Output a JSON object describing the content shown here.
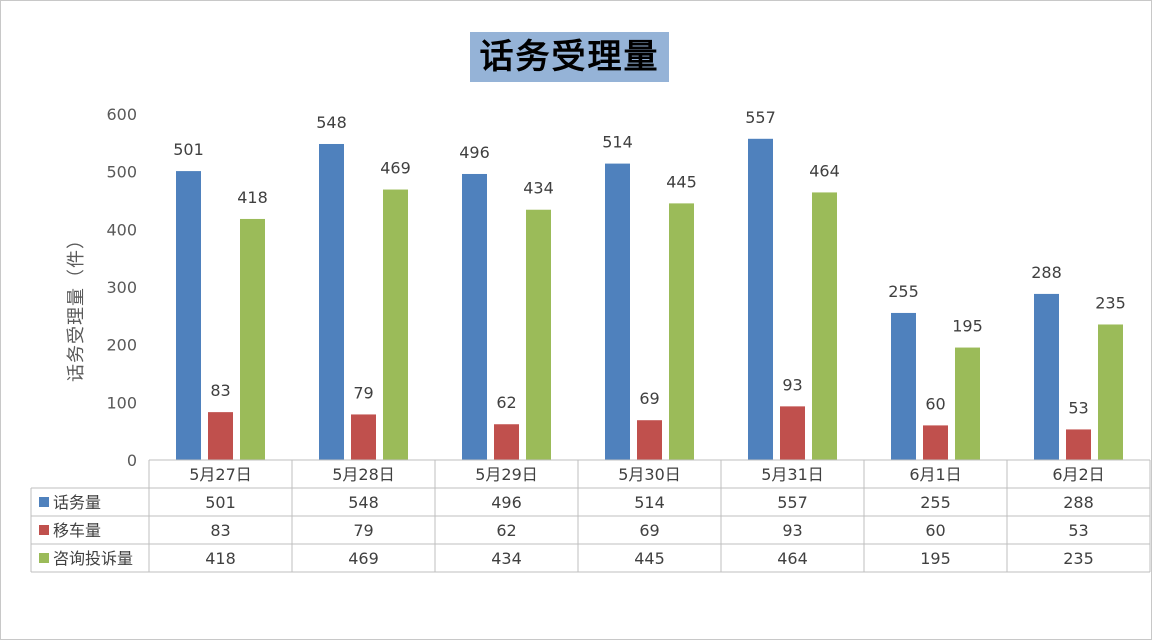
{
  "chart_data": {
    "type": "bar",
    "title": "话务受理量",
    "ylabel": "话务受理量（件）",
    "xlabel": "",
    "ylim": [
      0,
      600
    ],
    "yticks": [
      0,
      100,
      200,
      300,
      400,
      500,
      600
    ],
    "categories": [
      "5月27日",
      "5月28日",
      "5月29日",
      "5月30日",
      "5月31日",
      "6月1日",
      "6月2日"
    ],
    "series": [
      {
        "name": "话务量",
        "color": "#4f81bd",
        "values": [
          501,
          548,
          496,
          514,
          557,
          255,
          288
        ]
      },
      {
        "name": "移车量",
        "color": "#c0504d",
        "values": [
          83,
          79,
          62,
          69,
          93,
          60,
          53
        ]
      },
      {
        "name": "咨询投诉量",
        "color": "#9bbb59",
        "values": [
          418,
          469,
          434,
          445,
          464,
          195,
          235
        ]
      }
    ],
    "grid": false,
    "data_table": true,
    "legend": "data-table-left"
  }
}
